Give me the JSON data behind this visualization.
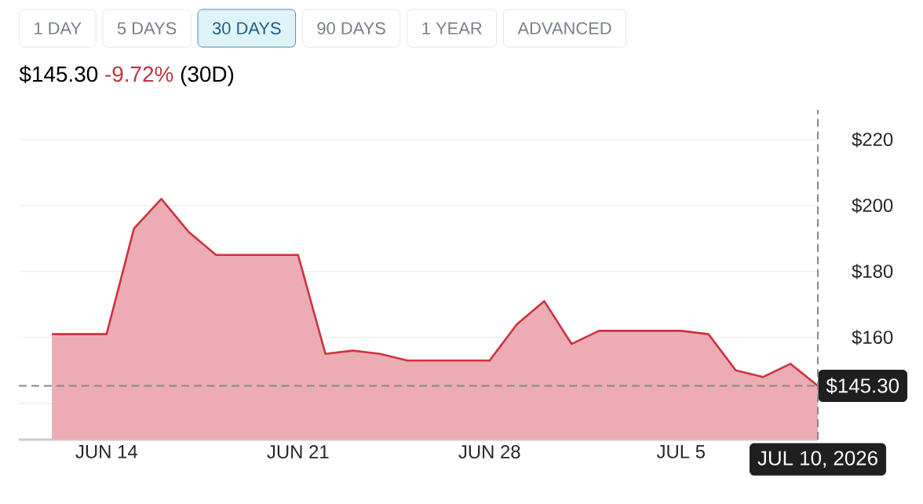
{
  "chart_data": {
    "type": "area",
    "title": "$145.30",
    "subtitle": "-9.72%",
    "annotations": [
      "1 DAY",
      "5 DAYS",
      "30 DAYS",
      "90 DAYS",
      "1 YEAR",
      "ADVANCED",
      "(30D)"
    ],
    "x": [
      "2026-06-12",
      "2026-06-13",
      "2026-06-14",
      "2026-06-15",
      "2026-06-16",
      "2026-06-17",
      "2026-06-18",
      "2026-06-19",
      "2026-06-20",
      "2026-06-21",
      "2026-06-22",
      "2026-06-23",
      "2026-06-24",
      "2026-06-25",
      "2026-06-26",
      "2026-06-27",
      "2026-06-28",
      "2026-06-29",
      "2026-06-30",
      "2026-07-01",
      "2026-07-02",
      "2026-07-03",
      "2026-07-04",
      "2026-07-05",
      "2026-07-06",
      "2026-07-07",
      "2026-07-08",
      "2026-07-09",
      "2026-07-10"
    ],
    "series": [
      {
        "color": "#cc3340",
        "values": [
          161,
          161,
          161,
          193,
          202,
          192,
          185,
          185,
          185,
          185,
          155,
          156,
          155,
          153,
          153,
          153,
          153,
          164,
          171,
          158,
          162,
          162,
          162,
          162,
          161,
          150,
          148,
          152,
          145.3
        ]
      }
    ],
    "xlim": [
      "2026-06-10T19:00",
      "2026-07-10"
    ],
    "xticks": [
      {
        "value": "2026-06-14",
        "label": "JUN 14"
      },
      {
        "value": "2026-06-21",
        "label": "JUN 21"
      },
      {
        "value": "2026-06-28",
        "label": "JUN 28"
      },
      {
        "value": "2026-07-05",
        "label": "JUL 5"
      }
    ],
    "ylim": [
      129,
      229
    ],
    "yticks": [
      {
        "value": 140,
        "label": null
      },
      {
        "value": 160,
        "label": "$160"
      },
      {
        "value": 180,
        "label": "$180"
      },
      {
        "value": 200,
        "label": "$200"
      },
      {
        "value": 220,
        "label": "$220"
      }
    ],
    "grid": "y",
    "ref_lines": [
      {
        "axis": "y",
        "value": 145.3,
        "label": "$145.30",
        "color": "#888888",
        "line_style": "dashed"
      },
      {
        "axis": "x",
        "value": "2026-07-10",
        "label": "JUL 10, 2026",
        "color": "#888888",
        "line_style": "dashed"
      }
    ]
  }
}
